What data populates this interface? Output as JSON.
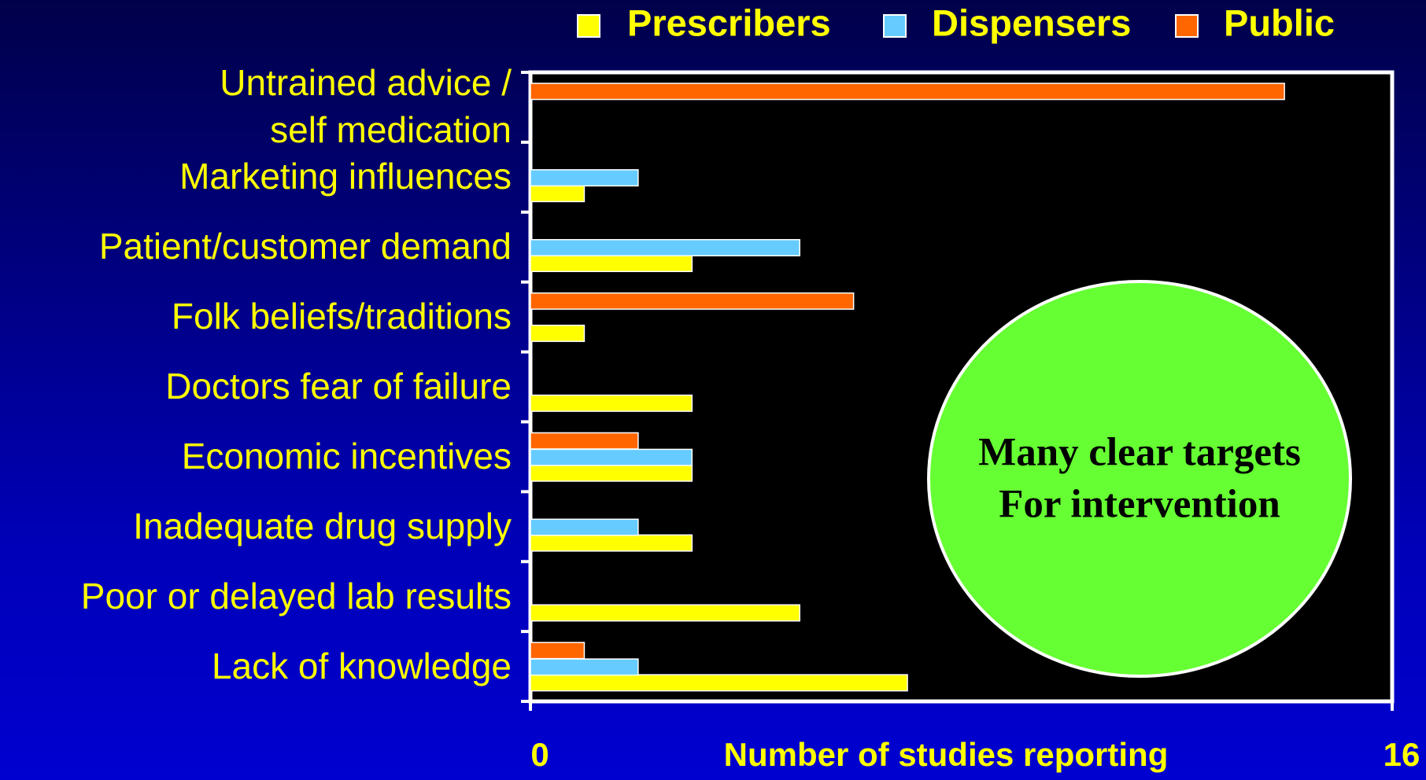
{
  "chart_data": {
    "type": "bar",
    "orientation": "horizontal",
    "categories": [
      "Untrained advice /\nself medication",
      "Marketing influences",
      "Patient/customer demand",
      "Folk beliefs/traditions",
      "Doctors fear of failure",
      "Economic incentives",
      "Inadequate drug supply",
      "Poor or delayed lab results",
      "Lack of knowledge"
    ],
    "series": [
      {
        "name": "Prescribers",
        "color": "#ffff00",
        "values": [
          null,
          1,
          3,
          1,
          3,
          3,
          3,
          5,
          7
        ]
      },
      {
        "name": "Dispensers",
        "color": "#66ccff",
        "values": [
          null,
          2,
          5,
          null,
          null,
          3,
          2,
          null,
          2
        ]
      },
      {
        "name": "Public",
        "color": "#ff6600",
        "values": [
          14,
          null,
          null,
          6,
          null,
          2,
          null,
          null,
          1
        ]
      }
    ],
    "xlabel": "Number of studies reporting",
    "xlim": [
      0,
      16
    ],
    "xticks": [
      0,
      16
    ],
    "annotation": "Many clear targets\nFor intervention",
    "legend": "top"
  }
}
